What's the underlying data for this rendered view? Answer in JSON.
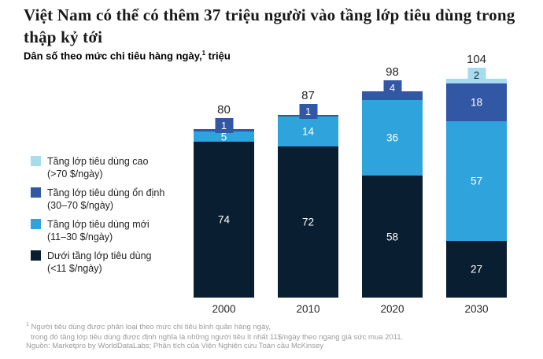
{
  "title_lines": [
    "Việt Nam có thể có thêm 37 triệu người vào tầng lớp tiêu dùng trong",
    "thập kỷ tới"
  ],
  "subtitle": {
    "main": "Dân số theo mức chi tiêu hàng ngày,",
    "sup": "1",
    "unit": " triệu"
  },
  "colors": {
    "cao": "#a6dcee",
    "on_dinh": "#3257a5",
    "moi": "#2fa3dc",
    "duoi": "#0a1e32"
  },
  "legend": {
    "items": [
      {
        "key": "cao",
        "label": "Tầng lớp tiêu dùng cao",
        "range": "(>70 $/ngày)"
      },
      {
        "key": "on_dinh",
        "label": "Tầng lớp tiêu dùng ổn định",
        "range": "(30–70 $/ngày)"
      },
      {
        "key": "moi",
        "label": "Tầng lớp tiêu dùng mới",
        "range": "(11–30 $/ngày)"
      },
      {
        "key": "duoi",
        "label": "Dưới tầng lớp tiêu dùng",
        "range": "(<11 $/ngày)"
      }
    ]
  },
  "chart_data": {
    "type": "bar",
    "stacked": true,
    "title": "Dân số theo mức chi tiêu hàng ngày, triệu",
    "categories": [
      "2000",
      "2010",
      "2020",
      "2030"
    ],
    "totals": [
      80,
      87,
      98,
      104
    ],
    "ylim": [
      0,
      110
    ],
    "legend_position": "left",
    "series": [
      {
        "name": "Dưới tầng lớp tiêu dùng (<11 $/ngày)",
        "key": "duoi",
        "values": [
          74,
          72,
          58,
          27
        ]
      },
      {
        "name": "Tầng lớp tiêu dùng mới (11–30 $/ngày)",
        "key": "moi",
        "values": [
          5,
          14,
          36,
          57
        ]
      },
      {
        "name": "Tầng lớp tiêu dùng ổn định (30–70 $/ngày)",
        "key": "on_dinh",
        "values": [
          1,
          1,
          4,
          18
        ]
      },
      {
        "name": "Tầng lớp tiêu dùng cao (>70 $/ngày)",
        "key": "cao",
        "values": [
          0,
          0,
          0,
          2
        ]
      }
    ],
    "bars": [
      {
        "category": "2000",
        "total": 80,
        "segments": [
          {
            "key": "duoi",
            "value": 74,
            "show_label": true
          },
          {
            "key": "moi",
            "value": 5,
            "show_label": true
          },
          {
            "key": "on_dinh",
            "value": 1,
            "badge": true
          },
          {
            "key": "cao",
            "value": 0
          }
        ]
      },
      {
        "category": "2010",
        "total": 87,
        "segments": [
          {
            "key": "duoi",
            "value": 72,
            "show_label": true
          },
          {
            "key": "moi",
            "value": 14,
            "show_label": true
          },
          {
            "key": "on_dinh",
            "value": 1,
            "badge": true
          },
          {
            "key": "cao",
            "value": 0
          }
        ]
      },
      {
        "category": "2020",
        "total": 98,
        "segments": [
          {
            "key": "duoi",
            "value": 58,
            "show_label": true
          },
          {
            "key": "moi",
            "value": 36,
            "show_label": true
          },
          {
            "key": "on_dinh",
            "value": 4,
            "badge": true
          },
          {
            "key": "cao",
            "value": 0
          }
        ]
      },
      {
        "category": "2030",
        "total": 104,
        "segments": [
          {
            "key": "duoi",
            "value": 27,
            "show_label": true
          },
          {
            "key": "moi",
            "value": 57,
            "show_label": true
          },
          {
            "key": "on_dinh",
            "value": 18,
            "show_label": true
          },
          {
            "key": "cao",
            "value": 2,
            "badge": true
          }
        ]
      }
    ]
  },
  "footnote": {
    "sup": "1",
    "line1": "Người tiêu dùng được phân loại theo mức chi tiêu bình quân hàng ngày,",
    "line2": "trong đó tầng lớp tiêu dùng được định nghĩa là những người tiêu ít nhất 11$/ngày theo ngang giá sức mua 2011."
  },
  "source": "Nguồn: Marketpro by WorldDataLabs; Phân tích của Viện Nghiên cứu Toàn cầu McKinsey"
}
